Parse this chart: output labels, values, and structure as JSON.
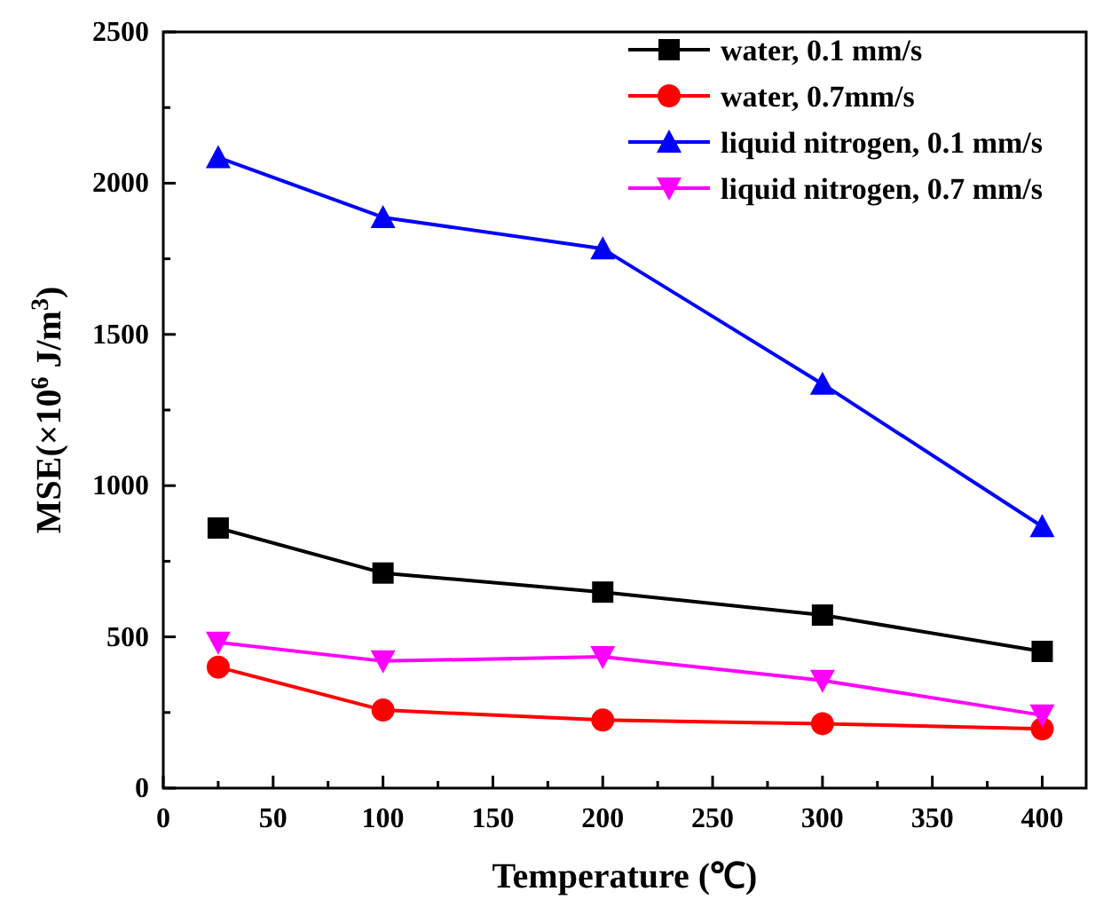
{
  "chart_data": {
    "type": "line",
    "xlabel": "Temperature (℃)",
    "ylabel": "MSE(×10$^{6}$ J/m$^{3}$)",
    "xlim": [
      0,
      420
    ],
    "ylim": [
      0,
      2500
    ],
    "xticks": [
      0,
      {
        "value": 25,
        "label": null
      },
      50,
      {
        "value": 75,
        "label": null
      },
      100,
      {
        "value": 125,
        "label": null
      },
      150,
      {
        "value": 175,
        "label": null
      },
      200,
      {
        "value": 225,
        "label": null
      },
      250,
      {
        "value": 275,
        "label": null
      },
      300,
      {
        "value": 325,
        "label": null
      },
      350,
      {
        "value": 375,
        "label": null
      },
      400
    ],
    "yticks": [
      0,
      {
        "value": 250,
        "label": null
      },
      500,
      {
        "value": 750,
        "label": null
      },
      1000,
      {
        "value": 1250,
        "label": null
      },
      1500,
      {
        "value": 1750,
        "label": null
      },
      2000,
      {
        "value": 2250,
        "label": null
      },
      2500
    ],
    "x": [
      25,
      100,
      200,
      300,
      400
    ],
    "grid": false,
    "legend": "top right",
    "line_style": "solid",
    "series": [
      {
        "name": "water, 0.1 mm/s",
        "color": "#000000",
        "marker": "square",
        "values": [
          860,
          711,
          648,
          572,
          452
        ]
      },
      {
        "name": "water, 0.7mm/s",
        "color": "#ff0000",
        "marker": "circle",
        "values": [
          400,
          258,
          225,
          213,
          196
        ]
      },
      {
        "name": "liquid nitrogen, 0.1 mm/s",
        "color": "#0000ff",
        "marker": "triangle",
        "values": [
          2085,
          1887,
          1783,
          1336,
          865
        ]
      },
      {
        "name": "liquid nitrogen, 0.7 mm/s",
        "color": "#ff00ff",
        "marker": "triangle-down",
        "values": [
          482,
          420,
          434,
          356,
          241
        ]
      }
    ]
  }
}
